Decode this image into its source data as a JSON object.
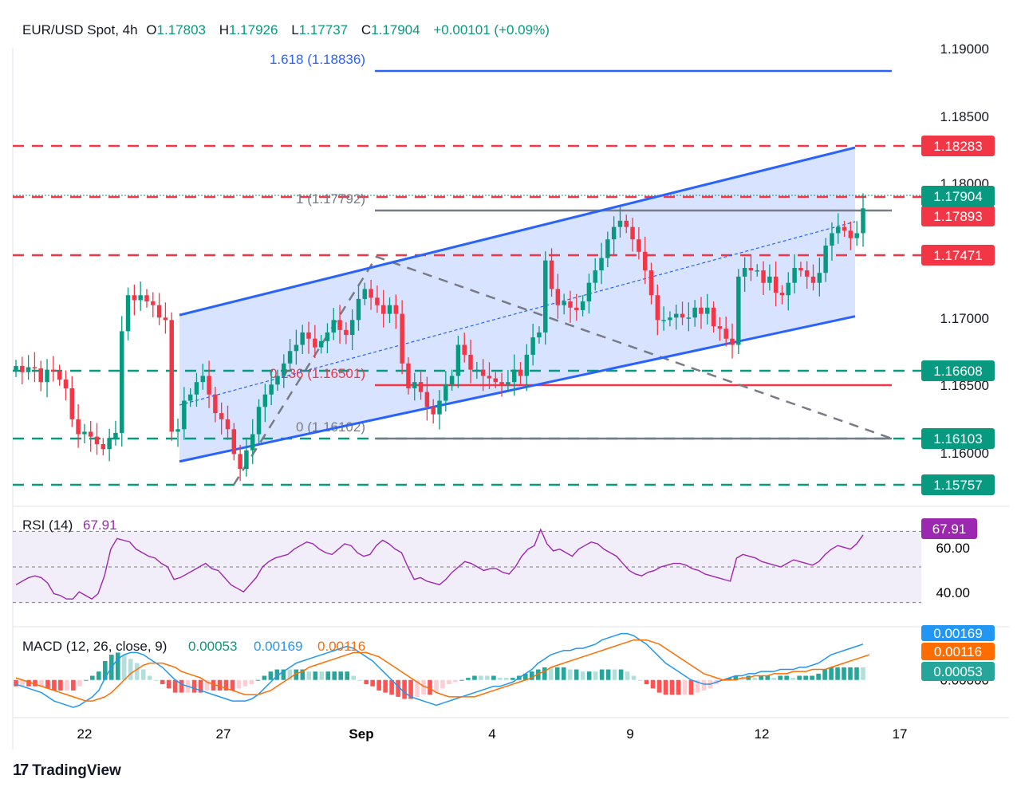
{
  "header": {
    "symbol": "EUR/USD Spot, 4h",
    "open_label": "O",
    "open": "1.17803",
    "high_label": "H",
    "high": "1.17926",
    "low_label": "L",
    "low": "1.17737",
    "close_label": "C",
    "close": "1.17904",
    "change": "+0.00101 (+0.09%)"
  },
  "brand": {
    "name": "TradingView",
    "icon": "tradingview-logo-icon"
  },
  "colors": {
    "up": "#089981",
    "down": "#f23645",
    "channel": "#2962ff",
    "channel_fill": "#c9d9ff",
    "rsi": "#9c27b0",
    "macd_line": "#2196f3",
    "signal_line": "#ff6d00",
    "fib_blue": "#2962ff",
    "grey": "#787b86"
  },
  "chart_data": [
    {
      "type": "candlestick",
      "title": "EUR/USD Spot, 4h",
      "x_ticks": [
        "22",
        "27",
        "Sep",
        "4",
        "9",
        "12",
        "17"
      ],
      "y_ticks": [
        "1.19000",
        "1.18500",
        "1.18000",
        "1.17000",
        "1.16500",
        "1.16000"
      ],
      "ylim": [
        1.1555,
        1.192
      ],
      "last_price": "1.17904",
      "closes": [
        1.1663,
        1.1658,
        1.1662,
        1.1661,
        1.165,
        1.166,
        1.1659,
        1.1652,
        1.1645,
        1.162,
        1.1608,
        1.161,
        1.1606,
        1.16,
        1.1596,
        1.1605,
        1.1609,
        1.1691,
        1.172,
        1.1716,
        1.172,
        1.1715,
        1.1712,
        1.1702,
        1.17,
        1.161,
        1.1612,
        1.1635,
        1.164,
        1.165,
        1.1655,
        1.164,
        1.1625,
        1.162,
        1.1612,
        1.1592,
        1.158,
        1.1595,
        1.1608,
        1.163,
        1.164,
        1.1648,
        1.1655,
        1.1665,
        1.1675,
        1.168,
        1.169,
        1.1685,
        1.1678,
        1.1683,
        1.169,
        1.17,
        1.1692,
        1.1688,
        1.17,
        1.1717,
        1.1725,
        1.1718,
        1.1712,
        1.1705,
        1.1712,
        1.1705,
        1.1665,
        1.1645,
        1.165,
        1.1642,
        1.163,
        1.1624,
        1.1635,
        1.1648,
        1.1655,
        1.168,
        1.1672,
        1.166,
        1.166,
        1.1655,
        1.1653,
        1.165,
        1.1648,
        1.165,
        1.166,
        1.1655,
        1.1672,
        1.1686,
        1.169,
        1.1748,
        1.1725,
        1.1712,
        1.1715,
        1.171,
        1.1708,
        1.1715,
        1.173,
        1.174,
        1.175,
        1.1765,
        1.1775,
        1.178,
        1.1775,
        1.1765,
        1.1755,
        1.174,
        1.172,
        1.17,
        1.17,
        1.1702,
        1.1705,
        1.1702,
        1.1702,
        1.171,
        1.1705,
        1.171,
        1.1695,
        1.1693,
        1.1685,
        1.168,
        1.1735,
        1.1742,
        1.174,
        1.174,
        1.173,
        1.1735,
        1.1722,
        1.172,
        1.173,
        1.1742,
        1.174,
        1.1735,
        1.173,
        1.1738,
        1.176,
        1.177,
        1.1775,
        1.1772,
        1.1766,
        1.177,
        1.179
      ],
      "channel": {
        "upper": [
          [
            1.1704,
            1.1839
          ]
        ],
        "lower": [
          [
            1.1586,
            1.1703
          ]
        ]
      },
      "horizontal_levels": [
        {
          "label": "1.18283",
          "color": "#f23645",
          "style": "dashed"
        },
        {
          "label": "1.17893",
          "color": "#f23645",
          "style": "dashed"
        },
        {
          "label": "1.17471",
          "color": "#f23645",
          "style": "dashed"
        },
        {
          "label": "1.16608",
          "color": "#089981",
          "style": "dashed"
        },
        {
          "label": "1.16103",
          "color": "#089981",
          "style": "dashed"
        },
        {
          "label": "1.15757",
          "color": "#089981",
          "style": "dashed"
        }
      ],
      "price_badges": [
        {
          "label": "1.17904",
          "color": "#089981"
        }
      ],
      "fibonacci": [
        {
          "label": "1.618 (1.18836)",
          "color": "#2962ff"
        },
        {
          "label": "1 (1.17792)",
          "color": "#787b86"
        },
        {
          "label": "0.236 (1.16501)",
          "color": "#f23645"
        },
        {
          "label": "0 (1.16102)",
          "color": "#787b86"
        }
      ],
      "diagonal_dashed_line": "grey"
    },
    {
      "type": "line",
      "title": "RSI (14)",
      "value": "67.91",
      "y_ticks": [
        "60.00",
        "40.00"
      ],
      "ylim": [
        20,
        80
      ],
      "bands": [
        70,
        50,
        30
      ],
      "series": [
        {
          "values": [
            40,
            42,
            44,
            45,
            44,
            41,
            35,
            34,
            32,
            32,
            36,
            34,
            32,
            35,
            45,
            60,
            66,
            65,
            64,
            60,
            58,
            56,
            55,
            52,
            50,
            43,
            44,
            46,
            48,
            50,
            52,
            49,
            48,
            44,
            40,
            38,
            36,
            40,
            44,
            50,
            53,
            55,
            56,
            57,
            60,
            62,
            64,
            63,
            60,
            58,
            57,
            60,
            63,
            62,
            58,
            56,
            57,
            62,
            65,
            63,
            60,
            58,
            50,
            43,
            44,
            42,
            41,
            40,
            43,
            47,
            50,
            53,
            52,
            50,
            48,
            49,
            49,
            47,
            46,
            50,
            56,
            60,
            62,
            71,
            63,
            59,
            60,
            58,
            56,
            60,
            62,
            64,
            63,
            60,
            58,
            56,
            52,
            48,
            46,
            45,
            47,
            48,
            50,
            51,
            52,
            52,
            51,
            49,
            48,
            46,
            45,
            44,
            43,
            42,
            55,
            57,
            56,
            55,
            53,
            52,
            51,
            50,
            52,
            54,
            53,
            52,
            51,
            53,
            57,
            60,
            62,
            61,
            60,
            63,
            68
          ]
        }
      ]
    },
    {
      "type": "bar",
      "title": "MACD (12, 26, close, 9)",
      "values_text": {
        "hist": "0.00053",
        "macd": "0.00169",
        "signal": "0.00116"
      },
      "y_ticks": [
        "0.00000"
      ],
      "ylim": [
        -0.0016,
        0.0023
      ],
      "series": [
        {
          "values": [
            -0.0002,
            -0.0003,
            -0.0004,
            -0.0005,
            -0.0006,
            -0.0008,
            -0.001,
            -0.0011,
            -0.0012,
            -0.0013,
            -0.0012,
            -0.001,
            -0.0008,
            -0.0005,
            0.0001,
            0.0006,
            0.001,
            0.0012,
            0.0013,
            0.0013,
            0.0012,
            0.001,
            0.0008,
            0.0006,
            0.0003,
            0.0,
            -0.0002,
            -0.0003,
            -0.0004,
            -0.0005,
            -0.0006,
            -0.0007,
            -0.0008,
            -0.0009,
            -0.001,
            -0.001,
            -0.001,
            -0.0009,
            -0.0007,
            -0.0004,
            -0.0001,
            0.0002,
            0.0004,
            0.0006,
            0.0008,
            0.0009,
            0.001,
            0.0011,
            0.0012,
            0.0013,
            0.0014,
            0.0015,
            0.0016,
            0.0015,
            0.0013,
            0.0011,
            0.0009,
            0.0006,
            0.0003,
            0.0,
            -0.0003,
            -0.0006,
            -0.0008,
            -0.0009,
            -0.001,
            -0.0011,
            -0.0012,
            -0.0011,
            -0.001,
            -0.0009,
            -0.0008,
            -0.0007,
            -0.0006,
            -0.0005,
            -0.0004,
            -0.0003,
            -0.0003,
            -0.0002,
            -0.0001,
            0.0001,
            0.0003,
            0.0005,
            0.0008,
            0.001,
            0.0012,
            0.0013,
            0.0014,
            0.0014,
            0.0015,
            0.0015,
            0.0016,
            0.0017,
            0.0019,
            0.002,
            0.0021,
            0.0022,
            0.0022,
            0.0021,
            0.0019,
            0.0017,
            0.0014,
            0.0011,
            0.0008,
            0.0006,
            0.0004,
            0.0002,
            0.0,
            -0.0001,
            -0.0002,
            -0.0002,
            -0.0001,
            0.0,
            0.0001,
            0.0002,
            0.0002,
            0.0003,
            0.0003,
            0.0004,
            0.0004,
            0.0004,
            0.0005,
            0.0005,
            0.0005,
            0.0006,
            0.0006,
            0.0007,
            0.0008,
            0.001,
            0.0012,
            0.0013,
            0.0014,
            0.0015,
            0.0016,
            0.0017
          ]
        },
        {
          "values": [
            0.0001,
            0.0,
            -0.0001,
            -0.0002,
            -0.0003,
            -0.0004,
            -0.0005,
            -0.0006,
            -0.0007,
            -0.0008,
            -0.0009,
            -0.001,
            -0.001,
            -0.0009,
            -0.0008,
            -0.0006,
            -0.0003,
            0.0,
            0.0003,
            0.0005,
            0.0007,
            0.0008,
            0.0008,
            0.0008,
            0.0007,
            0.0006,
            0.0004,
            0.0003,
            0.0002,
            0.0001,
            -0.0001,
            -0.0002,
            -0.0003,
            -0.0004,
            -0.0005,
            -0.0006,
            -0.0007,
            -0.0007,
            -0.0007,
            -0.0006,
            -0.0005,
            -0.0003,
            -0.0001,
            0.0001,
            0.0003,
            0.0004,
            0.0006,
            0.0007,
            0.0008,
            0.0009,
            0.001,
            0.0011,
            0.0012,
            0.0013,
            0.0013,
            0.0013,
            0.0012,
            0.0011,
            0.0009,
            0.0007,
            0.0005,
            0.0003,
            0.0001,
            -0.0001,
            -0.0003,
            -0.0004,
            -0.0006,
            -0.0007,
            -0.0008,
            -0.0008,
            -0.0008,
            -0.0008,
            -0.0008,
            -0.0007,
            -0.0006,
            -0.0005,
            -0.0004,
            -0.0003,
            -0.0002,
            -0.0001,
            0.0,
            0.0001,
            0.0003,
            0.0004,
            0.0006,
            0.0007,
            0.0008,
            0.0009,
            0.001,
            0.0011,
            0.0012,
            0.0013,
            0.0014,
            0.0015,
            0.0016,
            0.0017,
            0.0018,
            0.0019,
            0.0019,
            0.0019,
            0.0018,
            0.0017,
            0.0015,
            0.0013,
            0.0011,
            0.0009,
            0.0007,
            0.0005,
            0.0003,
            0.0002,
            0.0001,
            0.0,
            0.0,
            0.0,
            0.0001,
            0.0001,
            0.0002,
            0.0002,
            0.0002,
            0.0003,
            0.0003,
            0.0003,
            0.0004,
            0.0004,
            0.0004,
            0.0005,
            0.0005,
            0.0005,
            0.0006,
            0.0007,
            0.0008,
            0.0009,
            0.001,
            0.0011,
            0.0012
          ]
        }
      ]
    }
  ]
}
